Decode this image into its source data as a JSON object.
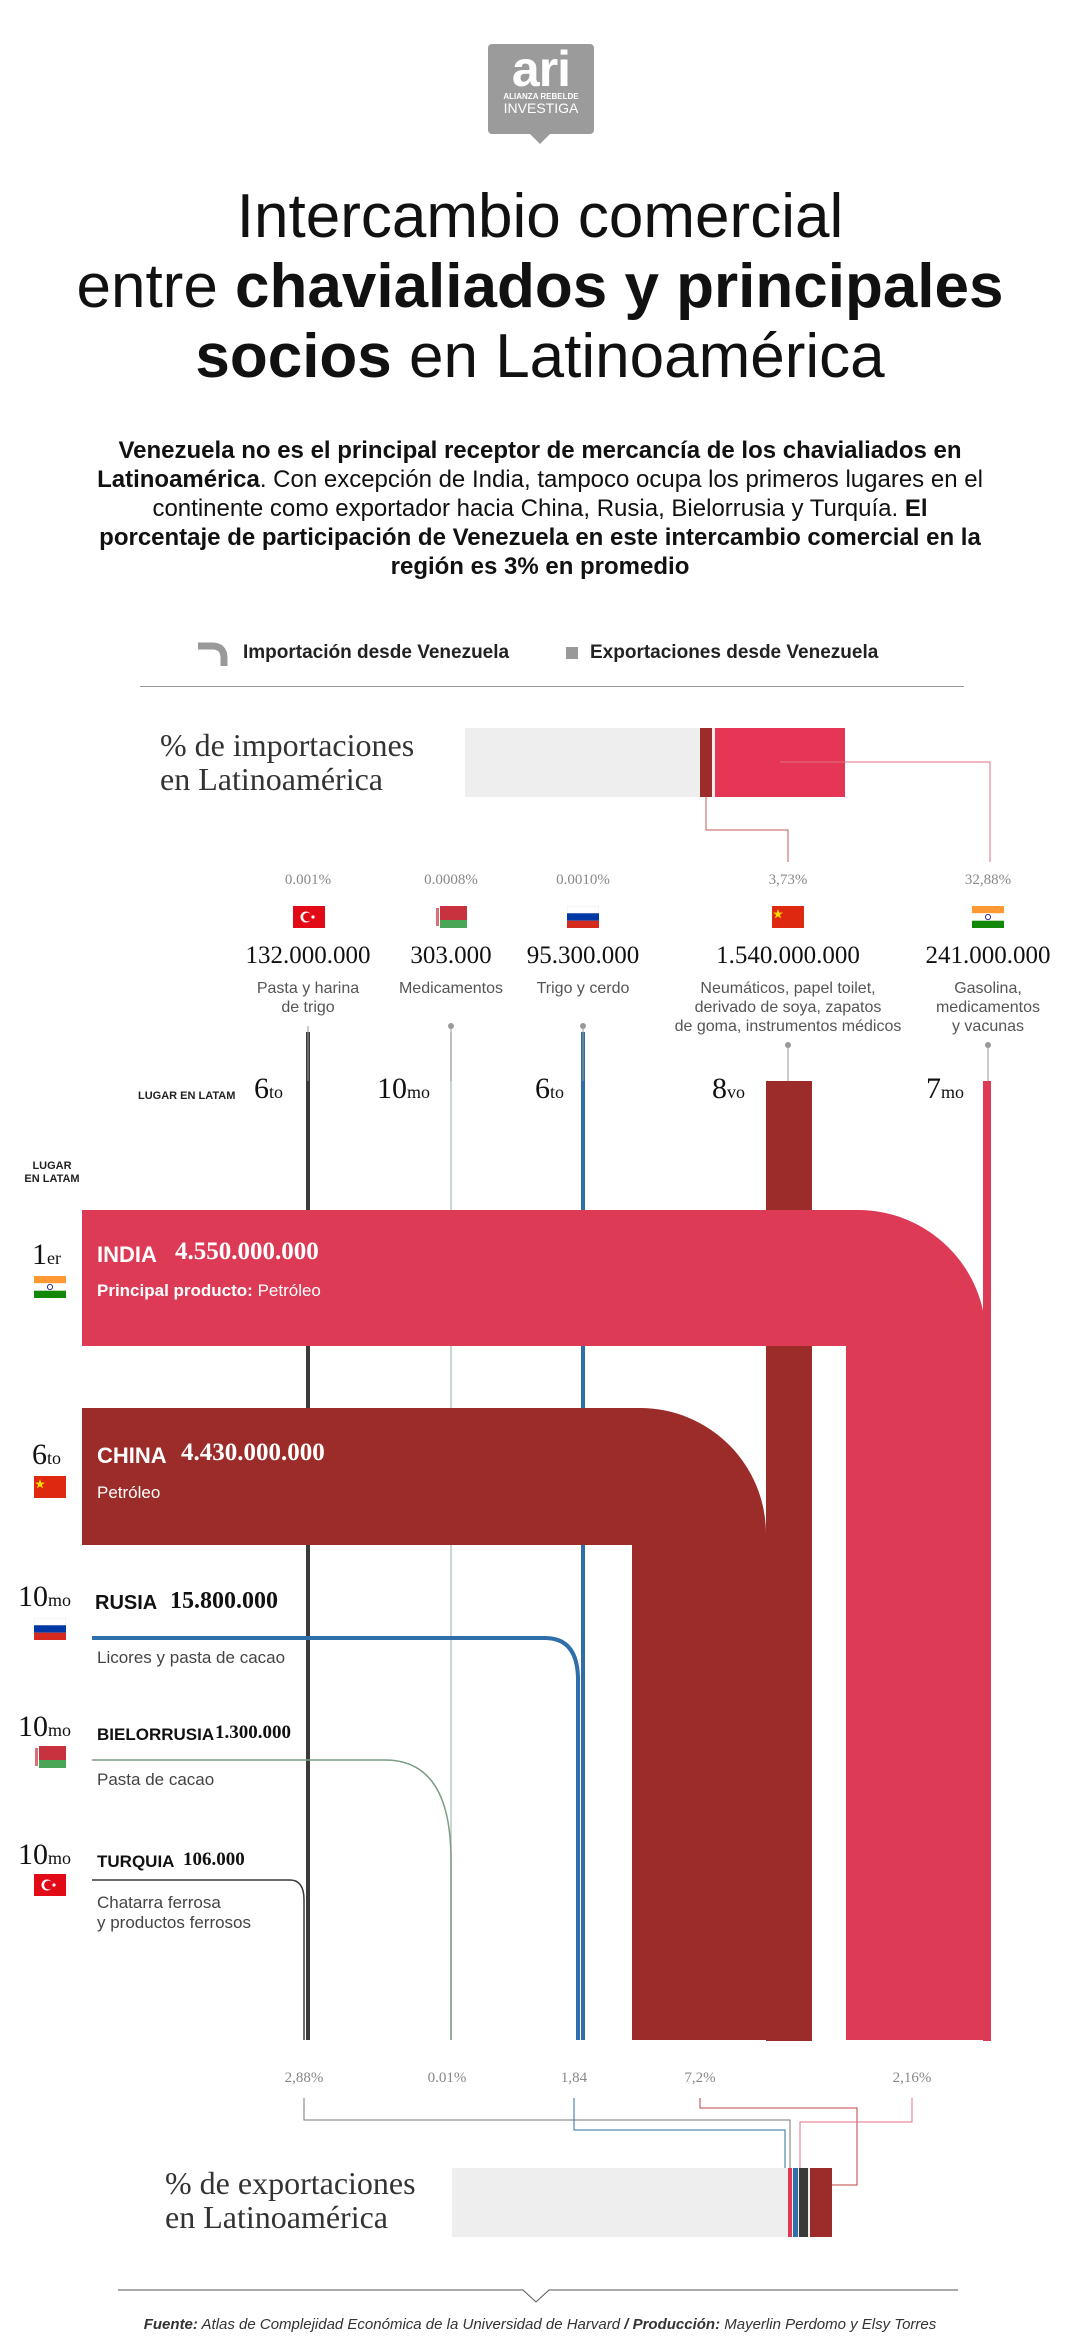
{
  "logo": {
    "mark": "ari",
    "line1": "ALIANZA REBELDE",
    "line2": "INVESTIGA"
  },
  "title": {
    "line1": "Intercambio comercial",
    "line2a": "entre ",
    "line2b": "chavialiados y principales",
    "line3a": "socios",
    "line3b": " en Latinoamérica"
  },
  "intro": {
    "p1": "Venezuela no es el principal receptor de mercancía de los chavialiados en Latinoamérica",
    "p2": ". Con excepción de India, tampoco ocupa los primeros lugares en el continente como exportador hacia China, Rusia, Bielorrusia y Turquía. ",
    "p3": "El porcentaje de participación de Venezuela en este intercambio comercial en la región es 3% en promedio"
  },
  "legend": {
    "import": "Importación desde Venezuela",
    "export": "Exportaciones desde Venezuela"
  },
  "colors": {
    "india": "#dc3a55",
    "china": "#9b2c2a",
    "russia": "#2f6ea8",
    "belarus": "#7c9c86",
    "turkey": "#3a3a3a",
    "gray": "#eeeeee"
  },
  "import_label": {
    "l1": "% de importaciones",
    "l2": "en Latinoamérica"
  },
  "export_label": {
    "l1": "% de exportaciones",
    "l2": "en Latinoamérica"
  },
  "rank_header": "LUGAR EN LATAM",
  "rank_header_left": {
    "l1": "LUGAR",
    "l2": "EN LATAM"
  },
  "columns": [
    {
      "name": "turquia",
      "pct": "0.001%",
      "amount": "132.000.000",
      "product": [
        "Pasta y harina",
        "de trigo"
      ],
      "rank_n": "6",
      "rank_s": "to",
      "flag": "turkey-flag-icon"
    },
    {
      "name": "bielorrusia",
      "pct": "0.0008%",
      "amount": "303.000",
      "product": [
        "Medicamentos"
      ],
      "rank_n": "10",
      "rank_s": "mo",
      "flag": "belarus-flag-icon"
    },
    {
      "name": "rusia",
      "pct": "0.0010%",
      "amount": "95.300.000",
      "product": [
        "Trigo y cerdo"
      ],
      "rank_n": "6",
      "rank_s": "to",
      "flag": "russia-flag-icon"
    },
    {
      "name": "china",
      "pct": "3,73%",
      "amount": "1.540.000.000",
      "product": [
        "Neumáticos, papel toilet,",
        "derivado de soya, zapatos",
        "de goma, instrumentos médicos"
      ],
      "rank_n": "8",
      "rank_s": "vo",
      "flag": "china-flag-icon"
    },
    {
      "name": "india",
      "pct": "32,88%",
      "amount": "241.000.000",
      "product": [
        "Gasolina,",
        "medicamentos",
        "y vacunas"
      ],
      "rank_n": "7",
      "rank_s": "mo",
      "flag": "india-flag-icon"
    }
  ],
  "rows": [
    {
      "name": "india",
      "rank_n": "1",
      "rank_s": "er",
      "country": "INDIA",
      "amount": "4.550.000.000",
      "product_label": "Principal producto:",
      "product": " Petróleo"
    },
    {
      "name": "china",
      "rank_n": "6",
      "rank_s": "to",
      "country": "CHINA",
      "amount": "4.430.000.000",
      "product": "Petróleo"
    },
    {
      "name": "rusia",
      "rank_n": "10",
      "rank_s": "mo",
      "country": "RUSIA",
      "amount": "15.800.000",
      "product": "Licores y pasta de cacao"
    },
    {
      "name": "bielorrusia",
      "rank_n": "10",
      "rank_s": "mo",
      "country": "BIELORRUSIA",
      "amount": "1.300.000",
      "product": "Pasta de cacao"
    },
    {
      "name": "turquia",
      "rank_n": "10",
      "rank_s": "mo",
      "country": "TURQUIA",
      "amount": "106.000",
      "product": [
        "Chatarra ferrosa",
        "y productos ferrosos"
      ]
    }
  ],
  "export_pcts": [
    "2,88%",
    "0.01%",
    "1,84",
    "7,2%",
    "2,16%"
  ],
  "chart_data": {
    "type": "flow",
    "title": "Intercambio comercial entre chavialiados y principales socios en Latinoamérica",
    "series": [
      {
        "name": "Importación desde Venezuela",
        "categories": [
          "Turquía",
          "Bielorrusia",
          "Rusia",
          "China",
          "India"
        ],
        "values": [
          132000000,
          303000,
          95300000,
          1540000000,
          241000000
        ],
        "share_pct": [
          0.001,
          0.0008,
          0.001,
          3.73,
          32.88
        ]
      },
      {
        "name": "Exportaciones desde Venezuela",
        "categories": [
          "India",
          "China",
          "Rusia",
          "Bielorrusia",
          "Turquía"
        ],
        "values": [
          4550000000,
          4430000000,
          15800000,
          1300000,
          106000
        ],
        "share_pct": [
          2.16,
          7.2,
          1.84,
          0.01,
          2.88
        ]
      }
    ]
  },
  "footer": {
    "f1": "Fuente:",
    "f2": " Atlas de Complejidad Económica de la Universidad de Harvard ",
    "f3": "/ Producción:",
    "f4": " Mayerlin Perdomo y Elsy Torres"
  }
}
